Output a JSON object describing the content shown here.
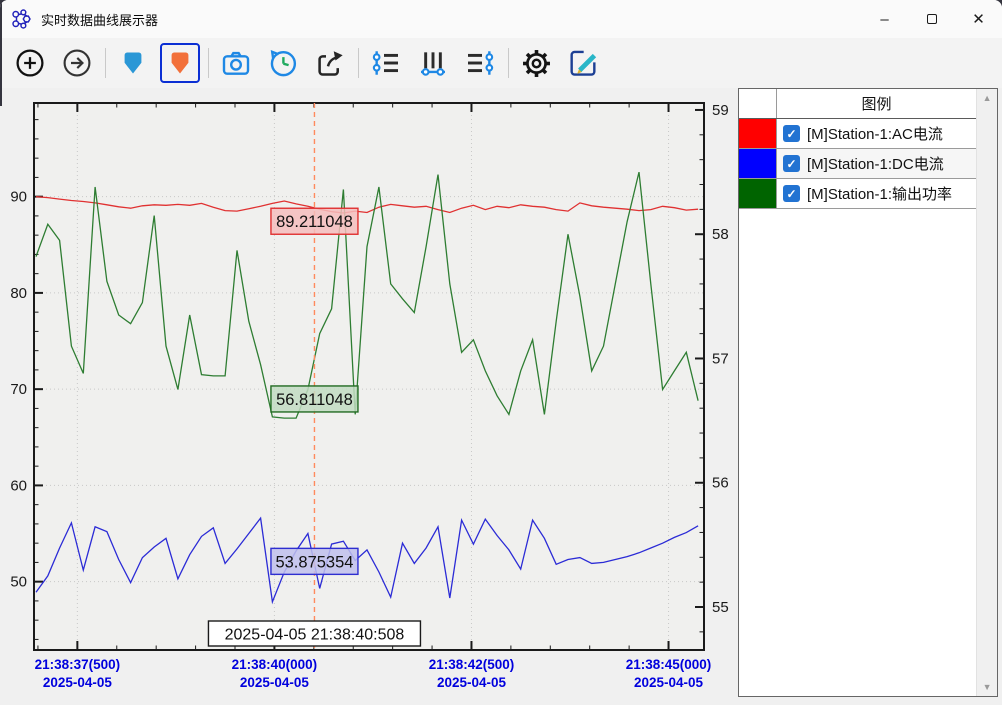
{
  "window": {
    "title": "实时数据曲线展示器",
    "controls": {
      "minimize": "–",
      "maximize": "",
      "close": "✕"
    }
  },
  "toolbar": {
    "buttons": [
      {
        "name": "zoom-in",
        "selected": false
      },
      {
        "name": "step-next",
        "selected": false
      },
      {
        "name": "marker-blue",
        "selected": false
      },
      {
        "name": "marker-orange",
        "selected": true
      },
      {
        "name": "snapshot-camera",
        "selected": false
      },
      {
        "name": "history-clock",
        "selected": false
      },
      {
        "name": "export-share",
        "selected": false
      },
      {
        "name": "series-filter-left",
        "selected": false
      },
      {
        "name": "column-sliders",
        "selected": false
      },
      {
        "name": "series-filter-right",
        "selected": false
      },
      {
        "name": "settings-gear",
        "selected": false
      },
      {
        "name": "edit-pencil",
        "selected": false
      }
    ],
    "colors": {
      "marker_blue": "#2a97d6",
      "marker_orange": "#f2703a",
      "selection_border": "#0b2fd4",
      "icon_blue": "#1e88e5"
    }
  },
  "legend": {
    "header": "图例",
    "items": [
      {
        "color": "#ff0000",
        "checked": true,
        "label": "[M]Station-1:AC电流"
      },
      {
        "color": "#0000ff",
        "checked": true,
        "label": "[M]Station-1:DC电流"
      },
      {
        "color": "#006400",
        "checked": true,
        "label": "[M]Station-1:输出功率"
      }
    ]
  },
  "chart_data": {
    "type": "line",
    "plot": {
      "bg": "#f0f0ee",
      "border": "#1a1a1a",
      "grid_color": "#c8c8c8"
    },
    "x_axis": {
      "range_seconds": [
        36.95,
        45.45
      ],
      "minor_step": 0.5,
      "label_color": "#0000dd",
      "major_ticks": [
        {
          "t": 37.5,
          "time": "21:38:37(500)",
          "date": "2025-04-05"
        },
        {
          "t": 40.0,
          "time": "21:38:40(000)",
          "date": "2025-04-05"
        },
        {
          "t": 42.5,
          "time": "21:38:42(500)",
          "date": "2025-04-05"
        },
        {
          "t": 45.0,
          "time": "21:38:45(000)",
          "date": "2025-04-05"
        }
      ]
    },
    "left_axis": {
      "ticks": [
        50,
        60,
        70,
        80,
        90
      ],
      "minor_step": 2,
      "range": [
        42.9,
        99.73
      ]
    },
    "right_axis": {
      "ticks": [
        55,
        56,
        57,
        58,
        59
      ],
      "minor_step": 0.2,
      "range": [
        54.654,
        59.056
      ]
    },
    "sample_start_seconds": 36.975,
    "sample_step_seconds": 0.15,
    "series": [
      {
        "name": "[M]Station-1:AC电流",
        "color": "#e03131",
        "axis": "left",
        "values": [
          90.0,
          89.9,
          89.75,
          89.6,
          89.5,
          89.35,
          89.15,
          88.95,
          88.8,
          89.05,
          89.15,
          89.1,
          89.2,
          89.1,
          89.3,
          88.9,
          88.55,
          88.5,
          88.75,
          89.0,
          89.3,
          89.55,
          89.25,
          89.0,
          88.7,
          88.45,
          88.3,
          88.5,
          88.35,
          88.9,
          89.2,
          89.05,
          88.9,
          89.0,
          88.65,
          88.35,
          88.8,
          89.1,
          88.65,
          89.0,
          88.85,
          89.15,
          89.0,
          88.9,
          88.65,
          88.5,
          89.35,
          89.05,
          88.9,
          88.8,
          88.7,
          88.55,
          88.65,
          89.0,
          88.85,
          88.6,
          88.7
        ]
      },
      {
        "name": "[M]Station-1:DC电流",
        "color": "#2b2bd6",
        "axis": "left",
        "values": [
          48.9,
          50.6,
          53.5,
          56.1,
          51.2,
          55.7,
          55.2,
          52.3,
          49.9,
          52.5,
          53.6,
          54.5,
          50.3,
          52.8,
          54.7,
          55.6,
          51.9,
          53.4,
          55.0,
          56.6,
          47.9,
          51.0,
          53.2,
          55.0,
          49.3,
          53.9,
          54.2,
          52.2,
          53.3,
          51.0,
          48.4,
          54.0,
          51.9,
          53.5,
          55.7,
          48.3,
          56.4,
          53.9,
          56.5,
          54.8,
          53.3,
          51.3,
          56.4,
          54.5,
          51.8,
          52.3,
          52.5,
          51.9,
          52.0,
          52.3,
          52.6,
          53.0,
          53.5,
          54.0,
          54.6,
          55.1,
          55.8
        ]
      },
      {
        "name": "[M]Station-1:输出功率",
        "color": "#2e7d32",
        "axis": "right",
        "values": [
          57.82,
          58.08,
          57.95,
          57.1,
          56.88,
          58.38,
          57.62,
          57.35,
          57.28,
          57.45,
          58.15,
          57.1,
          56.75,
          57.35,
          56.87,
          56.86,
          56.86,
          57.87,
          57.3,
          56.95,
          56.53,
          56.52,
          56.52,
          56.75,
          57.2,
          57.4,
          58.36,
          56.55,
          57.9,
          58.38,
          57.6,
          57.48,
          57.37,
          57.9,
          58.48,
          57.6,
          57.05,
          57.15,
          56.9,
          56.7,
          56.55,
          56.9,
          57.15,
          56.55,
          57.3,
          58.0,
          57.5,
          56.9,
          57.1,
          57.6,
          58.1,
          58.5,
          57.6,
          56.75,
          56.9,
          57.05,
          56.66
        ]
      }
    ],
    "cursor": {
      "time_seconds": 40.508,
      "line_color": "#ff8a5c",
      "timestamp_label": "2025-04-05 21:38:40:508",
      "value_labels": [
        {
          "text": "89.211048",
          "value": 89.211048,
          "axis": "left",
          "fill": "#f5bdbd",
          "stroke": "#e03030"
        },
        {
          "text": "56.811048",
          "value": 56.811048,
          "axis": "right",
          "fill": "#c2dcc2",
          "stroke": "#226b22"
        },
        {
          "text": "53.875354",
          "value": 53.875354,
          "axis": "left",
          "fill": "#bfbfec",
          "stroke": "#2e2ed0"
        }
      ]
    }
  }
}
